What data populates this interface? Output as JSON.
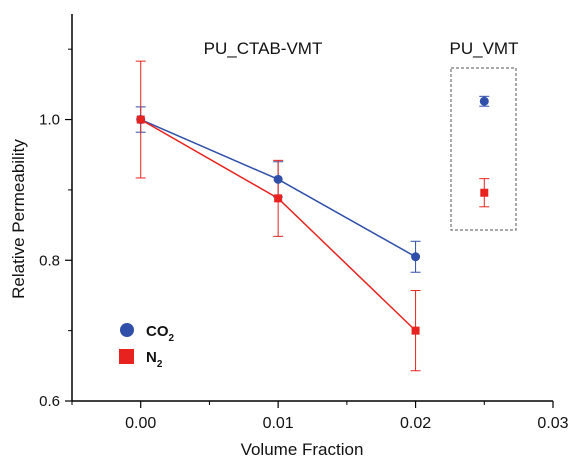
{
  "chart_data": {
    "type": "scatter",
    "xlabel": "Volume Fraction",
    "ylabel": "Relative Permeability",
    "xlim": [
      -0.005,
      0.03
    ],
    "ylim": [
      0.6,
      1.15
    ],
    "xticks": [
      "0.00",
      "0.01",
      "0.02",
      "0.03"
    ],
    "yticks": [
      "0.6",
      "0.8",
      "1.0"
    ],
    "xtick_values": [
      0.0,
      0.01,
      0.02,
      0.03
    ],
    "ytick_values": [
      0.6,
      0.8,
      1.0
    ],
    "x_minor_ticks": [
      -0.005,
      0.005,
      0.015,
      0.025
    ],
    "y_minor_ticks": [
      0.7,
      0.9,
      1.1
    ],
    "grid": false,
    "legend_position": "bottom-left",
    "annotations": {
      "group1": "PU_CTAB-VMT",
      "group2": "PU_VMT"
    },
    "series": [
      {
        "name": "CO2",
        "label_main": "CO",
        "label_sub": "2",
        "color": "#2f4fa8",
        "marker": "circle",
        "connected": true,
        "points": [
          {
            "x": 0.0,
            "y": 1.0,
            "err": 0.018
          },
          {
            "x": 0.01,
            "y": 0.915,
            "err": 0.025
          },
          {
            "x": 0.02,
            "y": 0.805,
            "err": 0.022
          }
        ]
      },
      {
        "name": "N2",
        "label_main": "N",
        "label_sub": "2",
        "color": "#e8231f",
        "marker": "square",
        "connected": true,
        "points": [
          {
            "x": 0.0,
            "y": 1.0,
            "err": 0.083
          },
          {
            "x": 0.01,
            "y": 0.888,
            "err": 0.054
          },
          {
            "x": 0.02,
            "y": 0.7,
            "err": 0.057
          }
        ]
      },
      {
        "name": "CO2",
        "color": "#2f4fa8",
        "marker": "circle",
        "connected": false,
        "points": [
          {
            "x": 0.025,
            "y": 1.026,
            "err": 0.007
          }
        ]
      },
      {
        "name": "N2",
        "color": "#e8231f",
        "marker": "square",
        "connected": false,
        "points": [
          {
            "x": 0.025,
            "y": 0.896,
            "err": 0.02
          }
        ]
      }
    ]
  }
}
